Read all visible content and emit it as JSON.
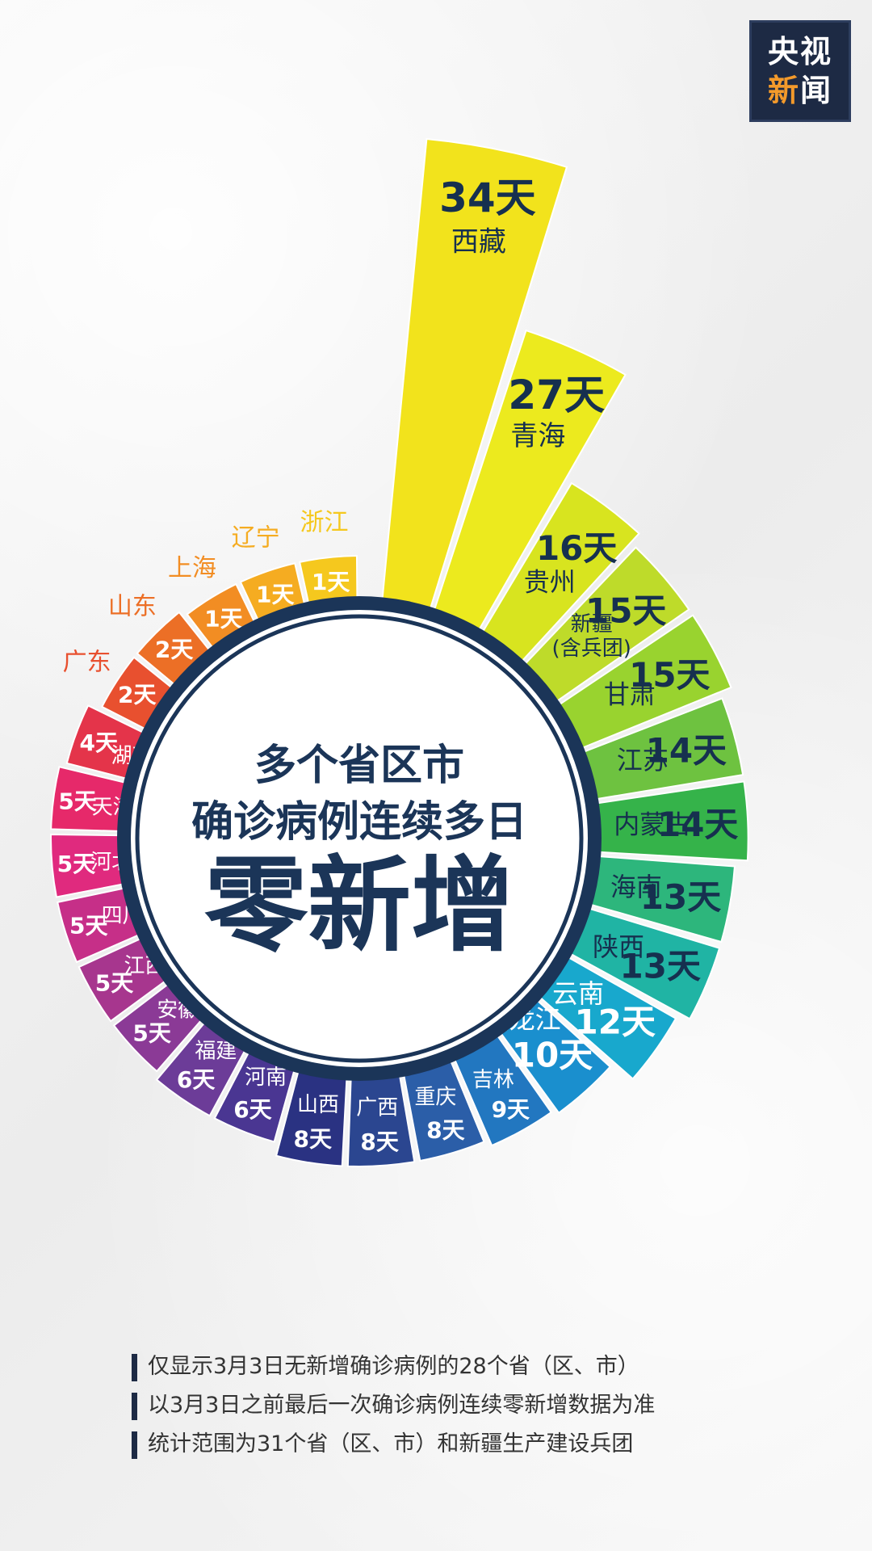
{
  "logo": {
    "line1": "央视",
    "line2_a": "新",
    "line2_b": "闻"
  },
  "center_title": {
    "line1": "多个省区市",
    "line2": "确诊病例连续多日",
    "line3": "零新增"
  },
  "notes": [
    "仅显示3月3日无新增确诊病例的28个省（区、市）",
    "以3月3日之前最后一次确诊病例连续零新增数据为准",
    "统计范围为31个省（区、市）和新疆生产建设兵团"
  ],
  "chart_data": {
    "type": "bar",
    "layout": "radial",
    "unit": "天",
    "categories": [
      "西藏",
      "青海",
      "贵州",
      "新疆(含兵团)",
      "甘肃",
      "江苏",
      "内蒙古",
      "海南",
      "陕西",
      "云南",
      "黑龙江",
      "吉林",
      "重庆",
      "广西",
      "山西",
      "河南",
      "福建",
      "安徽",
      "江西",
      "四川",
      "河北",
      "天津",
      "湖南",
      "广东",
      "山东",
      "上海",
      "辽宁",
      "浙江"
    ],
    "labels": [
      "西藏",
      "青海",
      "贵州",
      "新疆\n(含兵团)",
      "甘肃",
      "江苏",
      "内蒙古",
      "海南",
      "陕西",
      "云南",
      "黑龙江",
      "吉林",
      "重庆",
      "广西",
      "山西",
      "河南",
      "福建",
      "安徽",
      "江西",
      "四川",
      "河北",
      "天津",
      "湖南",
      "广东",
      "山东",
      "上海",
      "辽宁",
      "浙江"
    ],
    "values": [
      34,
      27,
      16,
      15,
      15,
      14,
      14,
      13,
      13,
      12,
      10,
      9,
      8,
      8,
      8,
      6,
      6,
      5,
      5,
      5,
      5,
      5,
      4,
      2,
      2,
      1,
      1,
      1
    ],
    "value_labels": [
      "34天",
      "27天",
      "16天",
      "15天",
      "15天",
      "14天",
      "14天",
      "13天",
      "13天",
      "12天",
      "10天",
      "9天",
      "8天",
      "8天",
      "8天",
      "6天",
      "6天",
      "5天",
      "5天",
      "5天",
      "5天",
      "5天",
      "4天",
      "2天",
      "2天",
      "1天",
      "1天",
      "1天"
    ],
    "colors": [
      "#f2e31c",
      "#ecea1e",
      "#d8e41f",
      "#bedb2a",
      "#99d32f",
      "#6ec240",
      "#35b34a",
      "#2db67c",
      "#20b4a4",
      "#18a8cd",
      "#1a8fce",
      "#2277c0",
      "#2b5ea8",
      "#2b4690",
      "#2a3282",
      "#4a3692",
      "#6c3c98",
      "#8b3a96",
      "#a7368e",
      "#c62f88",
      "#e02a7e",
      "#e6296a",
      "#e4344a",
      "#e8502f",
      "#ec6f26",
      "#f28d23",
      "#f5ac21",
      "#f5c81e"
    ]
  }
}
